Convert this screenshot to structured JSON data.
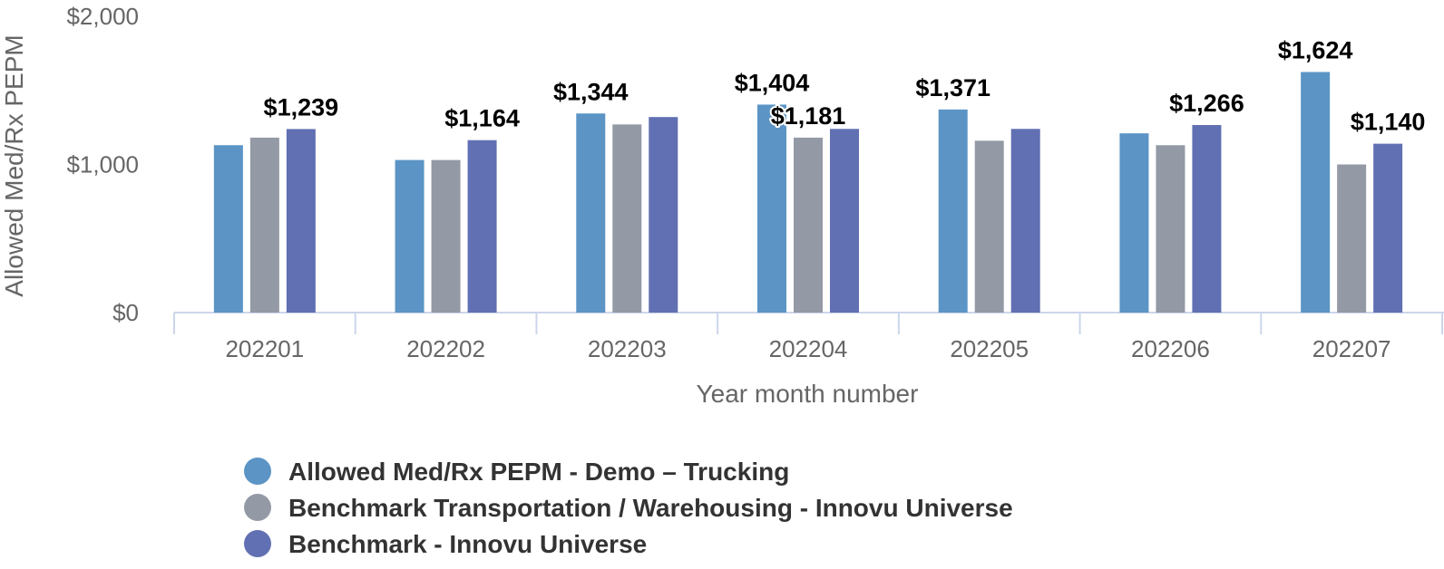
{
  "chart_data": {
    "type": "bar",
    "title": "",
    "xlabel": "Year month number",
    "ylabel": "Allowed Med/Rx PEPM",
    "ylim": [
      0,
      2000
    ],
    "yticks": [
      0,
      1000,
      2000
    ],
    "ytick_labels": [
      "$0",
      "$1,000",
      "$2,000"
    ],
    "categories": [
      "202201",
      "202202",
      "202203",
      "202204",
      "202205",
      "202206",
      "202207"
    ],
    "series": [
      {
        "name": "Allowed Med/Rx PEPM - Demo – Trucking",
        "color": "#5b94c5",
        "values": [
          1130,
          1030,
          1344,
          1404,
          1371,
          1210,
          1624
        ],
        "labels": [
          "",
          "",
          "$1,344",
          "$1,404",
          "$1,371",
          "",
          "$1,624"
        ]
      },
      {
        "name": "Benchmark Transportation / Warehousing - Innovu Universe",
        "color": "#9499a6",
        "values": [
          1181,
          1030,
          1270,
          1181,
          1160,
          1130,
          1000
        ],
        "labels": [
          "",
          "",
          "",
          "$1,181",
          "",
          "",
          ""
        ]
      },
      {
        "name": "Benchmark - Innovu Universe",
        "color": "#6170b2",
        "values": [
          1239,
          1164,
          1320,
          1240,
          1240,
          1266,
          1140
        ],
        "labels": [
          "$1,239",
          "$1,164",
          "",
          "",
          "",
          "$1,266",
          "$1,140"
        ]
      }
    ],
    "legend_position": "bottom-left",
    "grid": false
  }
}
